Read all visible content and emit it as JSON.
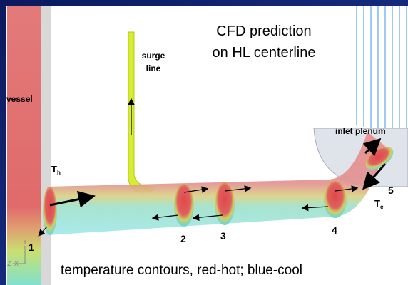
{
  "title_lines": [
    "CFD prediction",
    "on HL centerline"
  ],
  "labels": {
    "surge_line": [
      "surge",
      "line"
    ],
    "vessel": "vessel",
    "inlet_plenum": "inlet plenum",
    "th": {
      "main": "T",
      "sub": "h"
    },
    "tc": {
      "main": "T",
      "sub": "c"
    }
  },
  "sections": [
    "1",
    "2",
    "3",
    "4",
    "5"
  ],
  "axes": [
    "Y",
    "Z",
    "X"
  ],
  "caption": "temperature contours, red-hot; blue-cool"
}
